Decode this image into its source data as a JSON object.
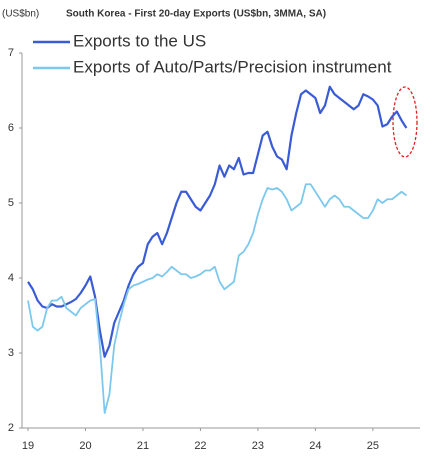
{
  "chart_data": {
    "type": "line",
    "unit_label": "(US$bn)",
    "title": "South Korea - First 20-day Exports (US$bn, 3MMA, SA)",
    "categories": [
      "19",
      null,
      null,
      null,
      null,
      null,
      null,
      null,
      null,
      null,
      null,
      null,
      "20",
      null,
      null,
      null,
      null,
      null,
      null,
      null,
      null,
      null,
      null,
      null,
      "21",
      null,
      null,
      null,
      null,
      null,
      null,
      null,
      null,
      null,
      null,
      null,
      "22",
      null,
      null,
      null,
      null,
      null,
      null,
      null,
      null,
      null,
      null,
      null,
      "23",
      null,
      null,
      null,
      null,
      null,
      null,
      null,
      null,
      null,
      null,
      null,
      "24",
      null,
      null,
      null,
      null,
      null,
      null,
      null,
      null,
      null,
      null,
      null,
      "25",
      null,
      null,
      null,
      null,
      null,
      null,
      null
    ],
    "series": [
      {
        "name": "Exports to the US",
        "color": "#3a5bd6",
        "values": [
          3.95,
          3.85,
          3.7,
          3.62,
          3.6,
          3.65,
          3.62,
          3.62,
          3.65,
          3.68,
          3.72,
          3.8,
          3.9,
          4.02,
          3.75,
          3.3,
          2.95,
          3.1,
          3.4,
          3.55,
          3.7,
          3.9,
          4.05,
          4.15,
          4.2,
          4.45,
          4.55,
          4.6,
          4.45,
          4.6,
          4.8,
          5.0,
          5.15,
          5.15,
          5.05,
          4.95,
          4.9,
          5.0,
          5.1,
          5.25,
          5.5,
          5.35,
          5.5,
          5.45,
          5.6,
          5.38,
          5.4,
          5.4,
          5.65,
          5.9,
          5.95,
          5.75,
          5.62,
          5.58,
          5.45,
          5.9,
          6.2,
          6.45,
          6.5,
          6.45,
          6.4,
          6.2,
          6.3,
          6.55,
          6.45,
          6.4,
          6.35,
          6.3,
          6.25,
          6.3,
          6.45,
          6.42,
          6.38,
          6.3,
          6.02,
          6.05,
          6.15,
          6.22,
          6.1,
          6.0
        ]
      },
      {
        "name": "Exports of Auto/Parts/Precision instrument",
        "color": "#7ec8ee",
        "values": [
          3.7,
          3.35,
          3.3,
          3.35,
          3.6,
          3.7,
          3.7,
          3.75,
          3.6,
          3.55,
          3.5,
          3.6,
          3.65,
          3.7,
          3.72,
          3.1,
          2.2,
          2.45,
          3.1,
          3.4,
          3.65,
          3.85,
          3.9,
          3.92,
          3.95,
          3.98,
          4.0,
          4.05,
          4.02,
          4.08,
          4.15,
          4.1,
          4.05,
          4.05,
          4.0,
          4.02,
          4.05,
          4.1,
          4.1,
          4.15,
          3.95,
          3.85,
          3.9,
          3.95,
          4.3,
          4.35,
          4.45,
          4.6,
          4.85,
          5.05,
          5.2,
          5.18,
          5.2,
          5.15,
          5.05,
          4.9,
          4.95,
          5.0,
          5.25,
          5.25,
          5.15,
          5.05,
          4.95,
          5.05,
          5.1,
          5.05,
          4.95,
          4.95,
          4.9,
          4.85,
          4.8,
          4.8,
          4.9,
          5.05,
          5.0,
          5.05,
          5.05,
          5.1,
          5.15,
          5.1
        ]
      }
    ],
    "ylim": [
      2,
      7
    ],
    "yticks": [
      2,
      3,
      4,
      5,
      6,
      7
    ],
    "grid": false
  }
}
